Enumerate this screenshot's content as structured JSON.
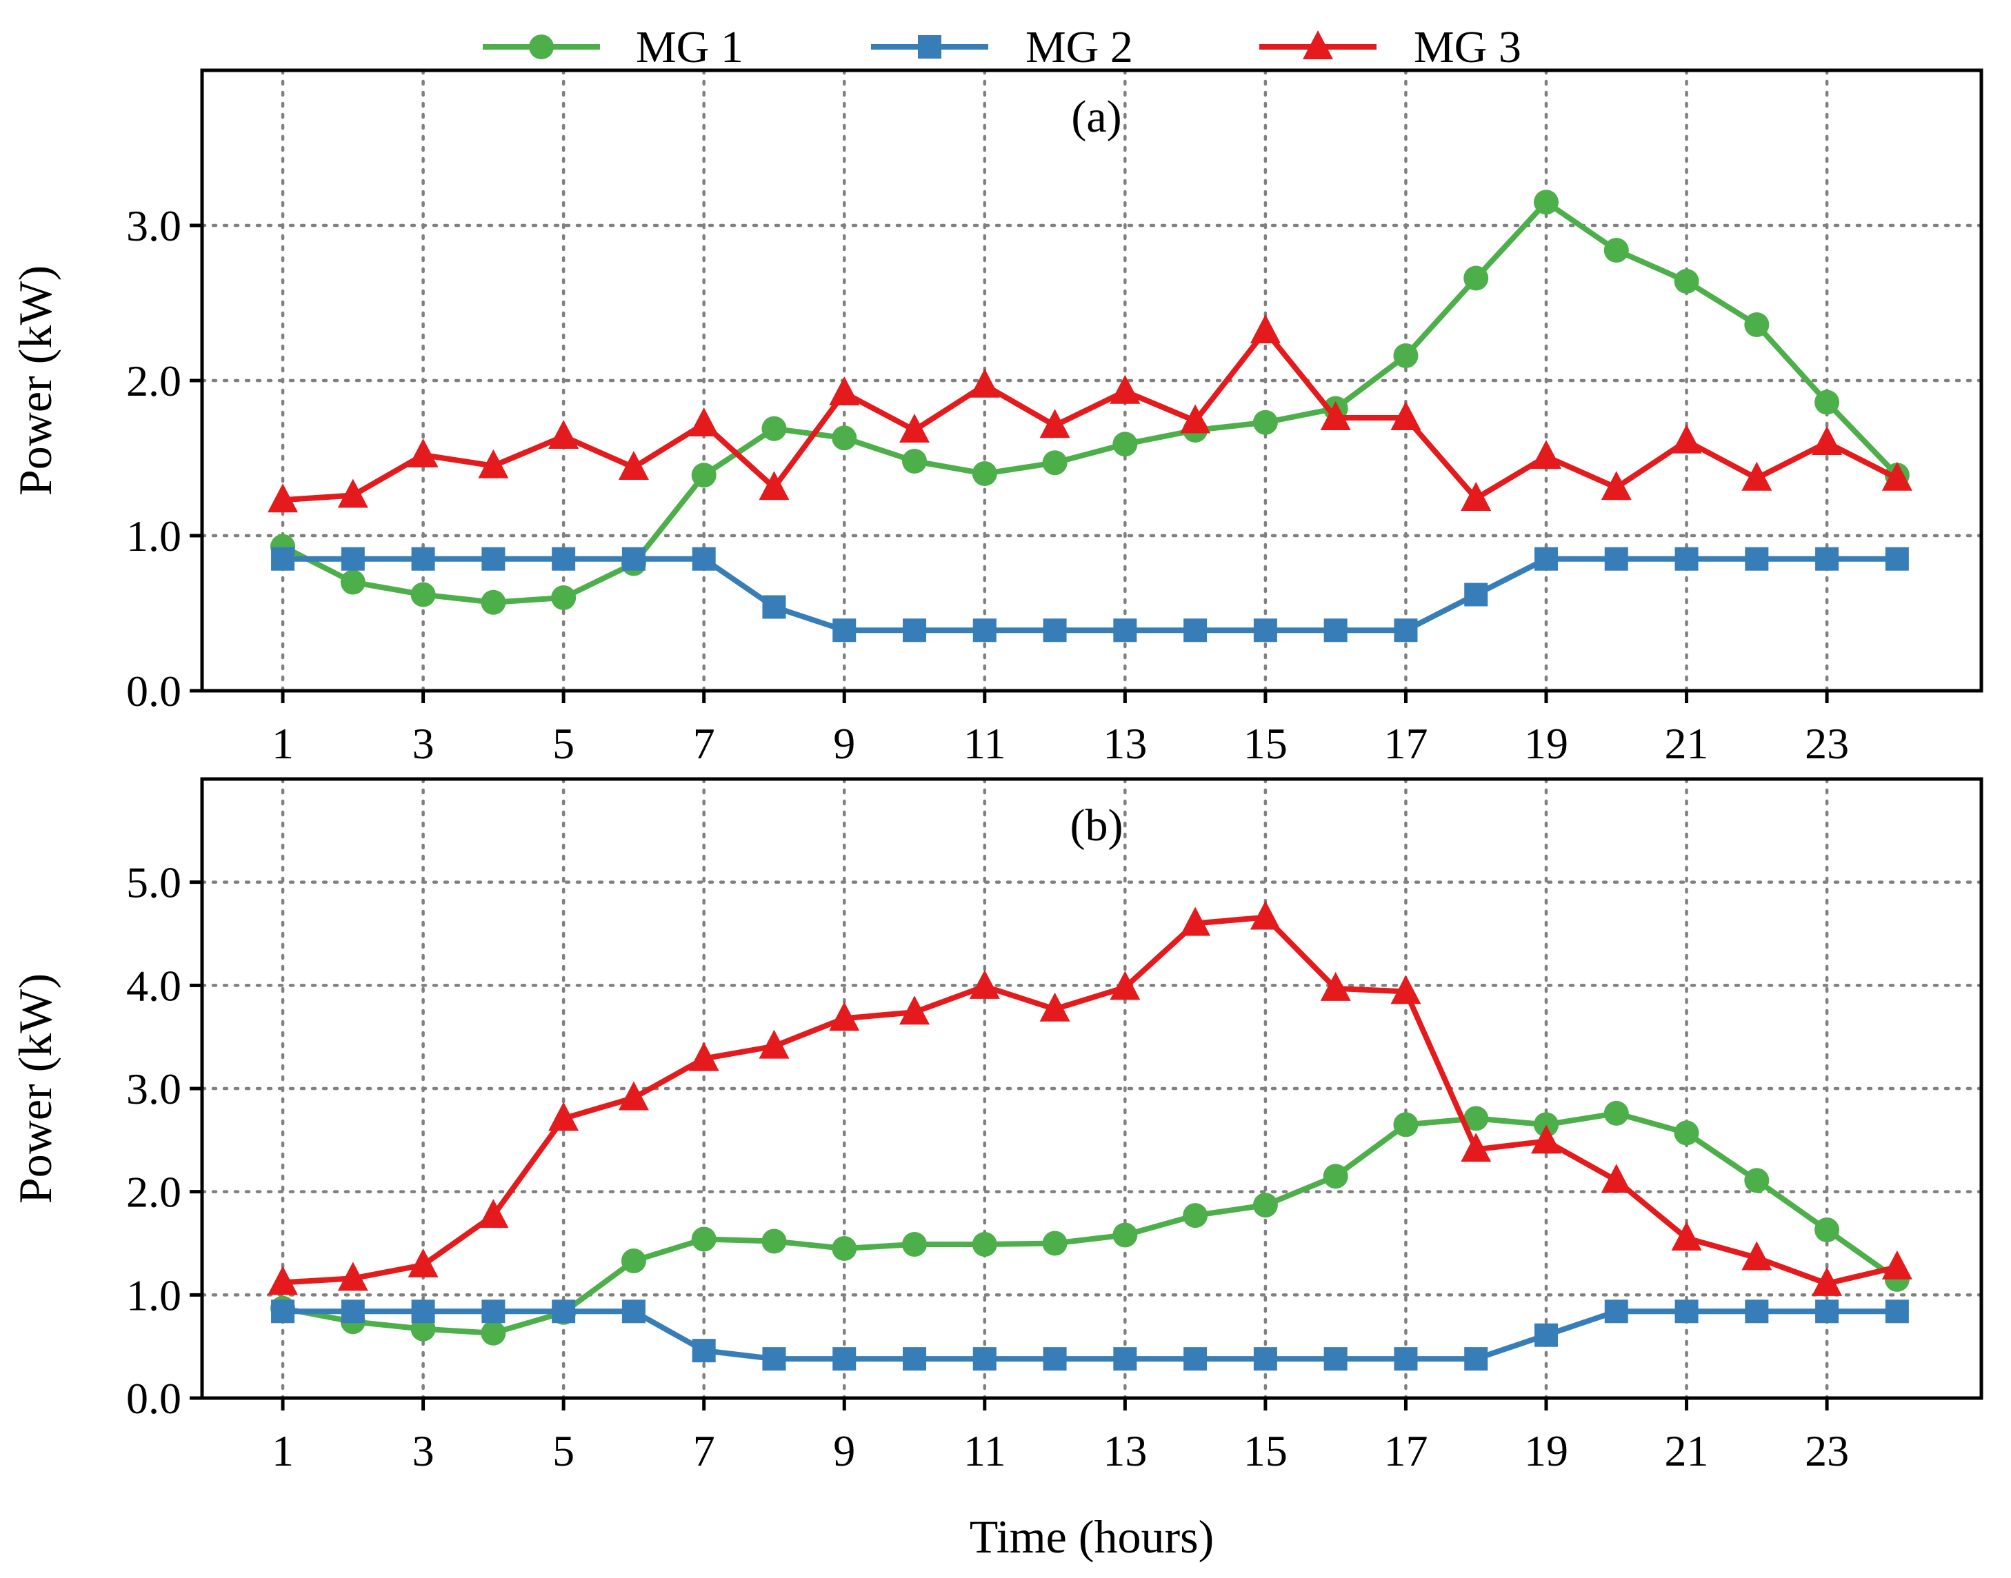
{
  "chart_data": [
    {
      "type": "line",
      "title": "(a)",
      "xlabel": "",
      "ylabel": "Power (kW)",
      "x": [
        1,
        2,
        3,
        4,
        5,
        6,
        7,
        8,
        9,
        10,
        11,
        12,
        13,
        14,
        15,
        16,
        17,
        18,
        19,
        20,
        21,
        22,
        23,
        24
      ],
      "xticks": [
        1,
        3,
        5,
        7,
        9,
        11,
        13,
        15,
        17,
        19,
        21,
        23
      ],
      "xtick_labels": [
        "1",
        "3",
        "5",
        "7",
        "9",
        "11",
        "13",
        "15",
        "17",
        "19",
        "21",
        "23"
      ],
      "xlim": [
        -0.15,
        25.2
      ],
      "ylim": [
        0,
        4.0
      ],
      "yticks": [
        0,
        1,
        2,
        3
      ],
      "ytick_labels": [
        "0.0",
        "1.0",
        "2.0",
        "3.0"
      ],
      "grid": true,
      "series": [
        {
          "name": "MG 1",
          "color": "#4daf4a",
          "marker": "circle",
          "values": [
            0.93,
            0.7,
            0.62,
            0.57,
            0.6,
            0.82,
            1.39,
            1.69,
            1.63,
            1.48,
            1.4,
            1.47,
            1.59,
            1.68,
            1.73,
            1.82,
            2.16,
            2.66,
            3.15,
            2.84,
            2.64,
            2.36,
            1.86,
            1.39
          ]
        },
        {
          "name": "MG 2",
          "color": "#377eb8",
          "marker": "square",
          "values": [
            0.85,
            0.85,
            0.85,
            0.85,
            0.85,
            0.85,
            0.85,
            0.54,
            0.39,
            0.39,
            0.39,
            0.39,
            0.39,
            0.39,
            0.39,
            0.39,
            0.39,
            0.62,
            0.85,
            0.85,
            0.85,
            0.85,
            0.85,
            0.85
          ]
        },
        {
          "name": "MG 3",
          "color": "#e41a1c",
          "marker": "triangle",
          "values": [
            1.23,
            1.26,
            1.52,
            1.45,
            1.64,
            1.44,
            1.72,
            1.31,
            1.92,
            1.68,
            1.97,
            1.71,
            1.93,
            1.74,
            2.32,
            1.76,
            1.76,
            1.24,
            1.51,
            1.31,
            1.61,
            1.37,
            1.6,
            1.37
          ]
        }
      ]
    },
    {
      "type": "line",
      "title": "(b)",
      "xlabel": "Time (hours)",
      "ylabel": "Power (kW)",
      "x": [
        1,
        2,
        3,
        4,
        5,
        6,
        7,
        8,
        9,
        10,
        11,
        12,
        13,
        14,
        15,
        16,
        17,
        18,
        19,
        20,
        21,
        22,
        23,
        24
      ],
      "xticks": [
        1,
        3,
        5,
        7,
        9,
        11,
        13,
        15,
        17,
        19,
        21,
        23
      ],
      "xtick_labels": [
        "1",
        "3",
        "5",
        "7",
        "9",
        "11",
        "13",
        "15",
        "17",
        "19",
        "21",
        "23"
      ],
      "xlim": [
        -0.15,
        25.2
      ],
      "ylim": [
        0,
        6.0
      ],
      "yticks": [
        0,
        1,
        2,
        3,
        4,
        5
      ],
      "ytick_labels": [
        "0.0",
        "1.0",
        "2.0",
        "3.0",
        "4.0",
        "5.0"
      ],
      "grid": true,
      "series": [
        {
          "name": "MG 1",
          "color": "#4daf4a",
          "marker": "circle",
          "values": [
            0.87,
            0.74,
            0.67,
            0.63,
            0.83,
            1.33,
            1.54,
            1.52,
            1.45,
            1.49,
            1.49,
            1.5,
            1.58,
            1.77,
            1.87,
            2.15,
            2.65,
            2.71,
            2.65,
            2.76,
            2.57,
            2.11,
            1.63,
            1.15
          ]
        },
        {
          "name": "MG 2",
          "color": "#377eb8",
          "marker": "square",
          "values": [
            0.84,
            0.84,
            0.84,
            0.84,
            0.84,
            0.84,
            0.46,
            0.38,
            0.38,
            0.38,
            0.38,
            0.38,
            0.38,
            0.38,
            0.38,
            0.38,
            0.38,
            0.38,
            0.61,
            0.84,
            0.84,
            0.84,
            0.84,
            0.84
          ]
        },
        {
          "name": "MG 3",
          "color": "#e41a1c",
          "marker": "triangle",
          "values": [
            1.12,
            1.16,
            1.29,
            1.77,
            2.71,
            2.91,
            3.29,
            3.41,
            3.68,
            3.74,
            3.99,
            3.77,
            3.98,
            4.6,
            4.66,
            3.97,
            3.94,
            2.41,
            2.49,
            2.11,
            1.55,
            1.36,
            1.11,
            1.27
          ]
        }
      ]
    }
  ],
  "legend": {
    "position": "top-center",
    "entries": [
      {
        "label": "MG 1",
        "color": "#4daf4a",
        "marker": "circle"
      },
      {
        "label": "MG 2",
        "color": "#377eb8",
        "marker": "square"
      },
      {
        "label": "MG 3",
        "color": "#e41a1c",
        "marker": "triangle"
      }
    ]
  }
}
